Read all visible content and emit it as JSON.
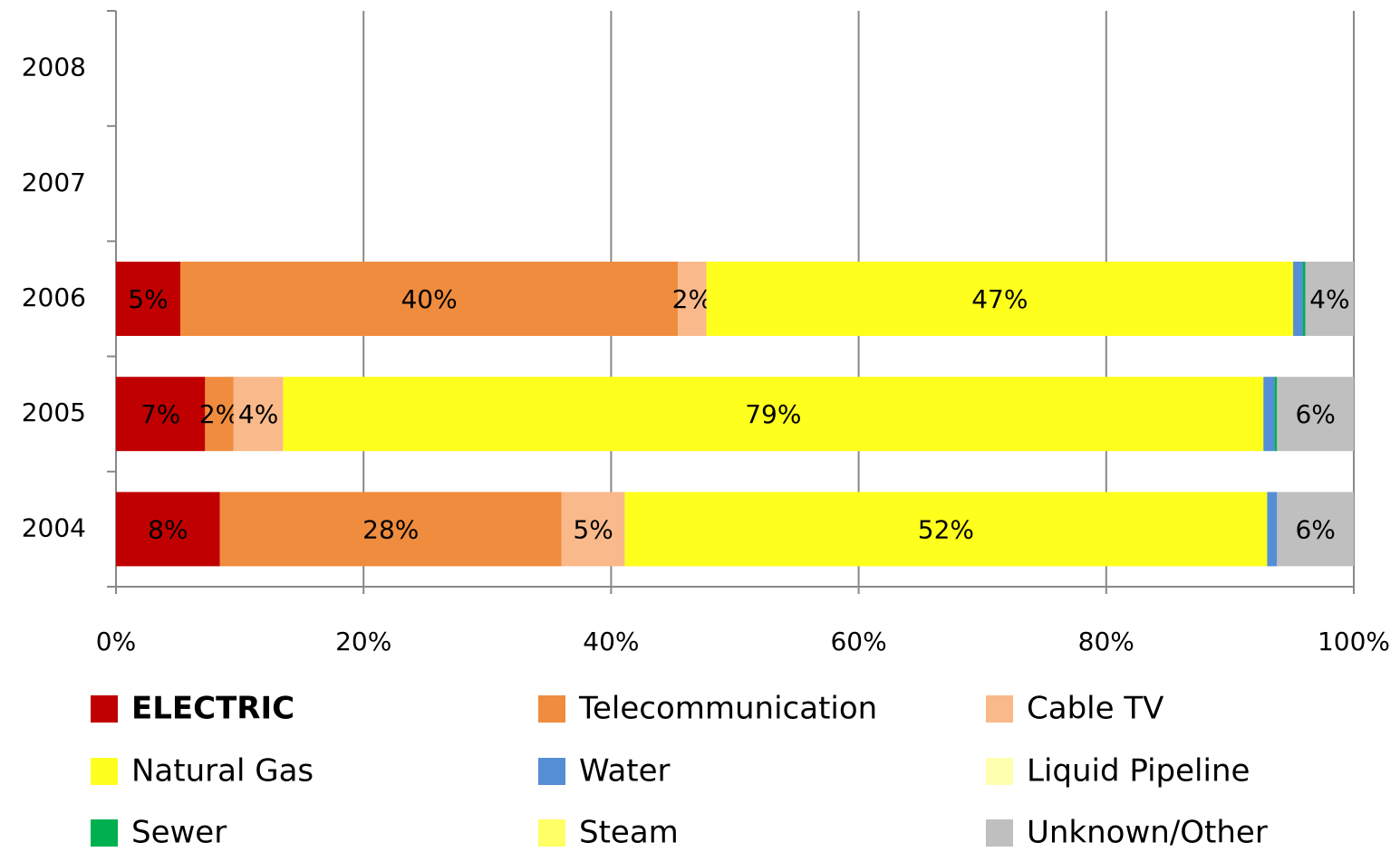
{
  "chart_data": {
    "type": "stacked_barh",
    "categories": [
      "2004",
      "2005",
      "2006",
      "2007",
      "2008"
    ],
    "series": [
      {
        "name": "ELECTRIC",
        "bold": true,
        "color": "#c00000",
        "values": [
          8.4,
          7.2,
          5.2,
          null,
          null
        ],
        "value_labels": [
          "8%",
          "7%",
          "5%",
          null,
          null
        ]
      },
      {
        "name": "Telecommunication",
        "color": "#ef8c3e",
        "values": [
          27.6,
          2.3,
          40.2,
          null,
          null
        ],
        "value_labels": [
          "28%",
          "2%",
          "40%",
          null,
          null
        ]
      },
      {
        "name": "Cable TV",
        "color": "#f9b98a",
        "values": [
          5.1,
          4.0,
          2.3,
          null,
          null
        ],
        "value_labels": [
          "5%",
          "4%",
          "2%",
          null,
          null
        ]
      },
      {
        "name": "Natural Gas",
        "color": "#ffff1e",
        "values": [
          51.9,
          79.2,
          47.4,
          null,
          null
        ],
        "value_labels": [
          "52%",
          "79%",
          "47%",
          null,
          null
        ]
      },
      {
        "name": "Water",
        "color": "#558ed5",
        "values": [
          0.8,
          0.9,
          0.8,
          null,
          null
        ]
      },
      {
        "name": "Liquid Pipeline",
        "color": "#ffffb0",
        "values": [
          0,
          0,
          0,
          null,
          null
        ]
      },
      {
        "name": "Sewer",
        "color": "#00b050",
        "values": [
          0,
          0.2,
          0.2,
          null,
          null
        ]
      },
      {
        "name": "Steam",
        "color": "#ffff66",
        "values": [
          0,
          0,
          0,
          null,
          null
        ]
      },
      {
        "name": "Unknown/Other",
        "color": "#bfbfbf",
        "values": [
          6.2,
          6.2,
          3.9,
          null,
          null
        ],
        "value_labels": [
          "6%",
          "6%",
          "4%",
          null,
          null
        ]
      }
    ],
    "xlim": [
      0,
      100
    ],
    "xticks": [
      {
        "value": 0,
        "label": "0%"
      },
      {
        "value": 20,
        "label": "20%"
      },
      {
        "value": 40,
        "label": "40%"
      },
      {
        "value": 60,
        "label": "60%"
      },
      {
        "value": 80,
        "label": "80%"
      },
      {
        "value": 100,
        "label": "100%"
      }
    ],
    "grid": true,
    "legend": "bottom"
  }
}
